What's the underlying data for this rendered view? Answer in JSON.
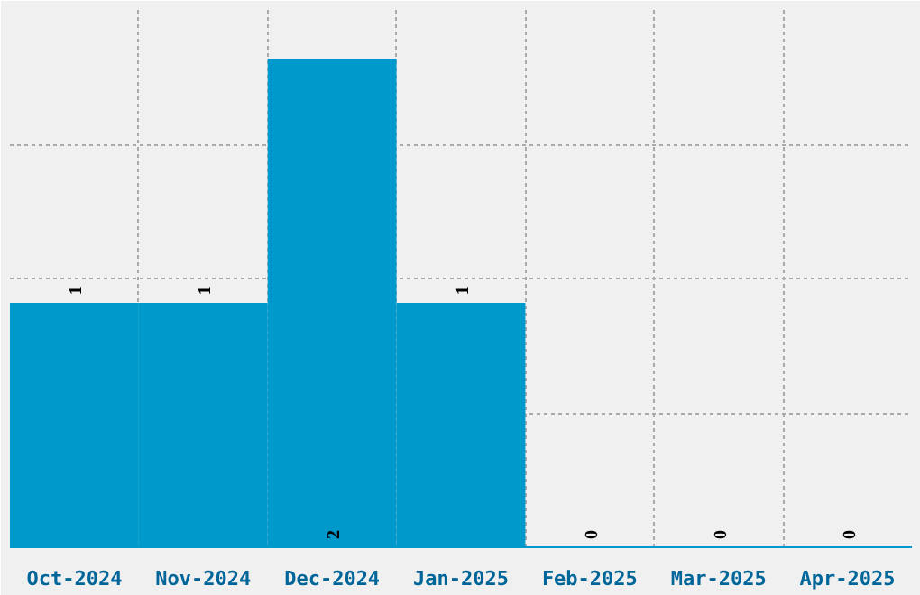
{
  "chart_data": {
    "type": "bar",
    "categories": [
      "Oct-2024",
      "Nov-2024",
      "Dec-2024",
      "Jan-2025",
      "Feb-2025",
      "Mar-2025",
      "Apr-2025"
    ],
    "values": [
      1,
      1,
      2,
      1,
      0,
      0,
      0
    ],
    "color": "#0099cc",
    "data_labels": true,
    "tick_labels": "x",
    "grid": true,
    "ylim": [
      0,
      2.2
    ]
  }
}
